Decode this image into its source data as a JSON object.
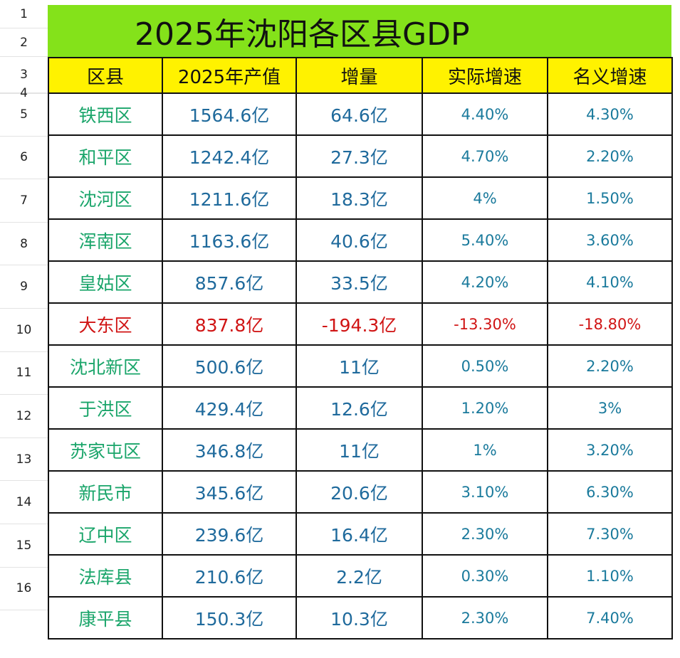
{
  "title": "2025年沈阳各区县GDP",
  "row_numbers": [
    "1",
    "2",
    "3",
    "4",
    "5",
    "6",
    "7",
    "8",
    "9",
    "10",
    "11",
    "12",
    "13",
    "14",
    "15",
    "16"
  ],
  "headers": [
    "区县",
    "2025年产值",
    "增量",
    "实际增速",
    "名义增速"
  ],
  "rows": [
    [
      "铁西区",
      "1564.6亿",
      "64.6亿",
      "4.40%",
      "4.30%"
    ],
    [
      "和平区",
      "1242.4亿",
      "27.3亿",
      "4.70%",
      "2.20%"
    ],
    [
      "沈河区",
      "1211.6亿",
      "18.3亿",
      "4%",
      "1.50%"
    ],
    [
      "浑南区",
      "1163.6亿",
      "40.6亿",
      "5.40%",
      "3.60%"
    ],
    [
      "皇姑区",
      "857.6亿",
      "33.5亿",
      "4.20%",
      "4.10%"
    ],
    [
      "大东区",
      "837.8亿",
      "-194.3亿",
      "-13.30%",
      "-18.80%"
    ],
    [
      "沈北新区",
      "500.6亿",
      "11亿",
      "0.50%",
      "2.20%"
    ],
    [
      "于洪区",
      "429.4亿",
      "12.6亿",
      "1.20%",
      "3%"
    ],
    [
      "苏家屯区",
      "346.8亿",
      "11亿",
      "1%",
      "3.20%"
    ],
    [
      "新民市",
      "345.6亿",
      "20.6亿",
      "3.10%",
      "6.30%"
    ],
    [
      "辽中区",
      "239.6亿",
      "16.4亿",
      "2.30%",
      "7.30%"
    ],
    [
      "法库县",
      "210.6亿",
      "2.2亿",
      "0.30%",
      "1.10%"
    ],
    [
      "康平县",
      "150.3亿",
      "10.3亿",
      "2.30%",
      "7.40%"
    ]
  ],
  "colors": {
    "title_bg": "#84e21a",
    "header_bg": "#fff200",
    "name": "#1aa56a",
    "value": "#1f6a9c",
    "negative": "#d01414"
  }
}
